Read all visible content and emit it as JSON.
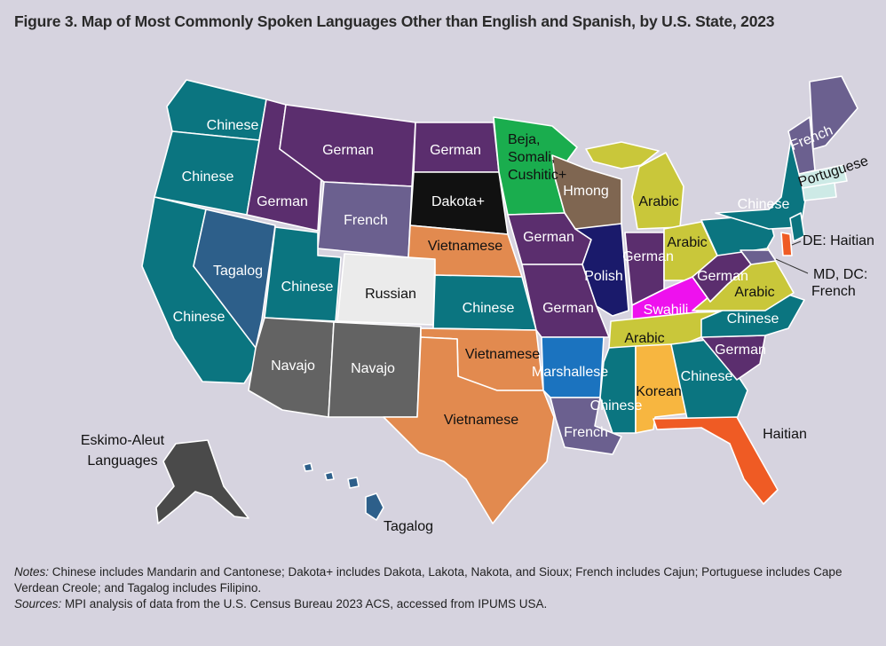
{
  "title": "Figure 3. Map of Most Commonly Spoken Languages Other than English and Spanish, by U.S. State, 2023",
  "colors": {
    "Chinese": "#0b7580",
    "German": "#5b2e6e",
    "French": "#6b608f",
    "Dakota+": "#111111",
    "Vietnamese": "#e28a4f",
    "Russian": "#ebebeb",
    "Tagalog": "#2d5f8a",
    "Navajo": "#636363",
    "Beja, Somali, Cushitic+": "#1aad4e",
    "Hmong": "#7f6651",
    "Arabic": "#c9c73a",
    "Polish": "#1a1a6b",
    "Swahili": "#ee11ee",
    "Marshallese": "#1b73bf",
    "Korean": "#f7b640",
    "Haitian": "#ef5b24",
    "Portuguese": "#cdeae6",
    "Eskimo-Aleut Languages": "#4a4a4a"
  },
  "labels": {
    "wa": "Chinese",
    "or": "Chinese",
    "ca": "Chinese",
    "nv": "Tagalog",
    "id": "German",
    "mt": "German",
    "wy": "French",
    "ut": "Chinese",
    "co": "Russian",
    "az": "Navajo",
    "nm": "Navajo",
    "nd": "German",
    "sd": "Dakota+",
    "ne": "Vietnamese",
    "ks": "Chinese",
    "ok": "Vietnamese",
    "tx": "Vietnamese",
    "mn1": "Beja,",
    "mn2": "Somali,",
    "mn3": "Cushitic+",
    "wi": "Hmong",
    "ia": "German",
    "mo": "German",
    "ar": "Marshallese",
    "la": "French",
    "il": "Polish",
    "mi": "Arabic",
    "in": "German",
    "oh": "Arabic",
    "ky": "Swahili",
    "tn": "Arabic",
    "ms": "Chinese",
    "al": "Korean",
    "ga": "Chinese",
    "fl": "Haitian",
    "sc": "German",
    "nc": "Chinese",
    "va": "Arabic",
    "wv": "German",
    "ny": "Chinese",
    "me": "French",
    "ri": "Portuguese",
    "de": "DE: Haitian",
    "md1": "MD, DC:",
    "md2": "French",
    "ak1": "Eskimo-Aleut",
    "ak2": "Languages",
    "hi": "Tagalog"
  },
  "notes": {
    "notes_label": "Notes:",
    "notes_text": " Chinese includes Mandarin and Cantonese; Dakota+ includes Dakota, Lakota, Nakota, and Sioux; French includes Cajun; Portuguese includes Cape Verdean Creole; and Tagalog includes Filipino.",
    "sources_label": "Sources:",
    "sources_text": " MPI analysis of data from the U.S. Census Bureau 2023 ACS, accessed from IPUMS USA."
  }
}
